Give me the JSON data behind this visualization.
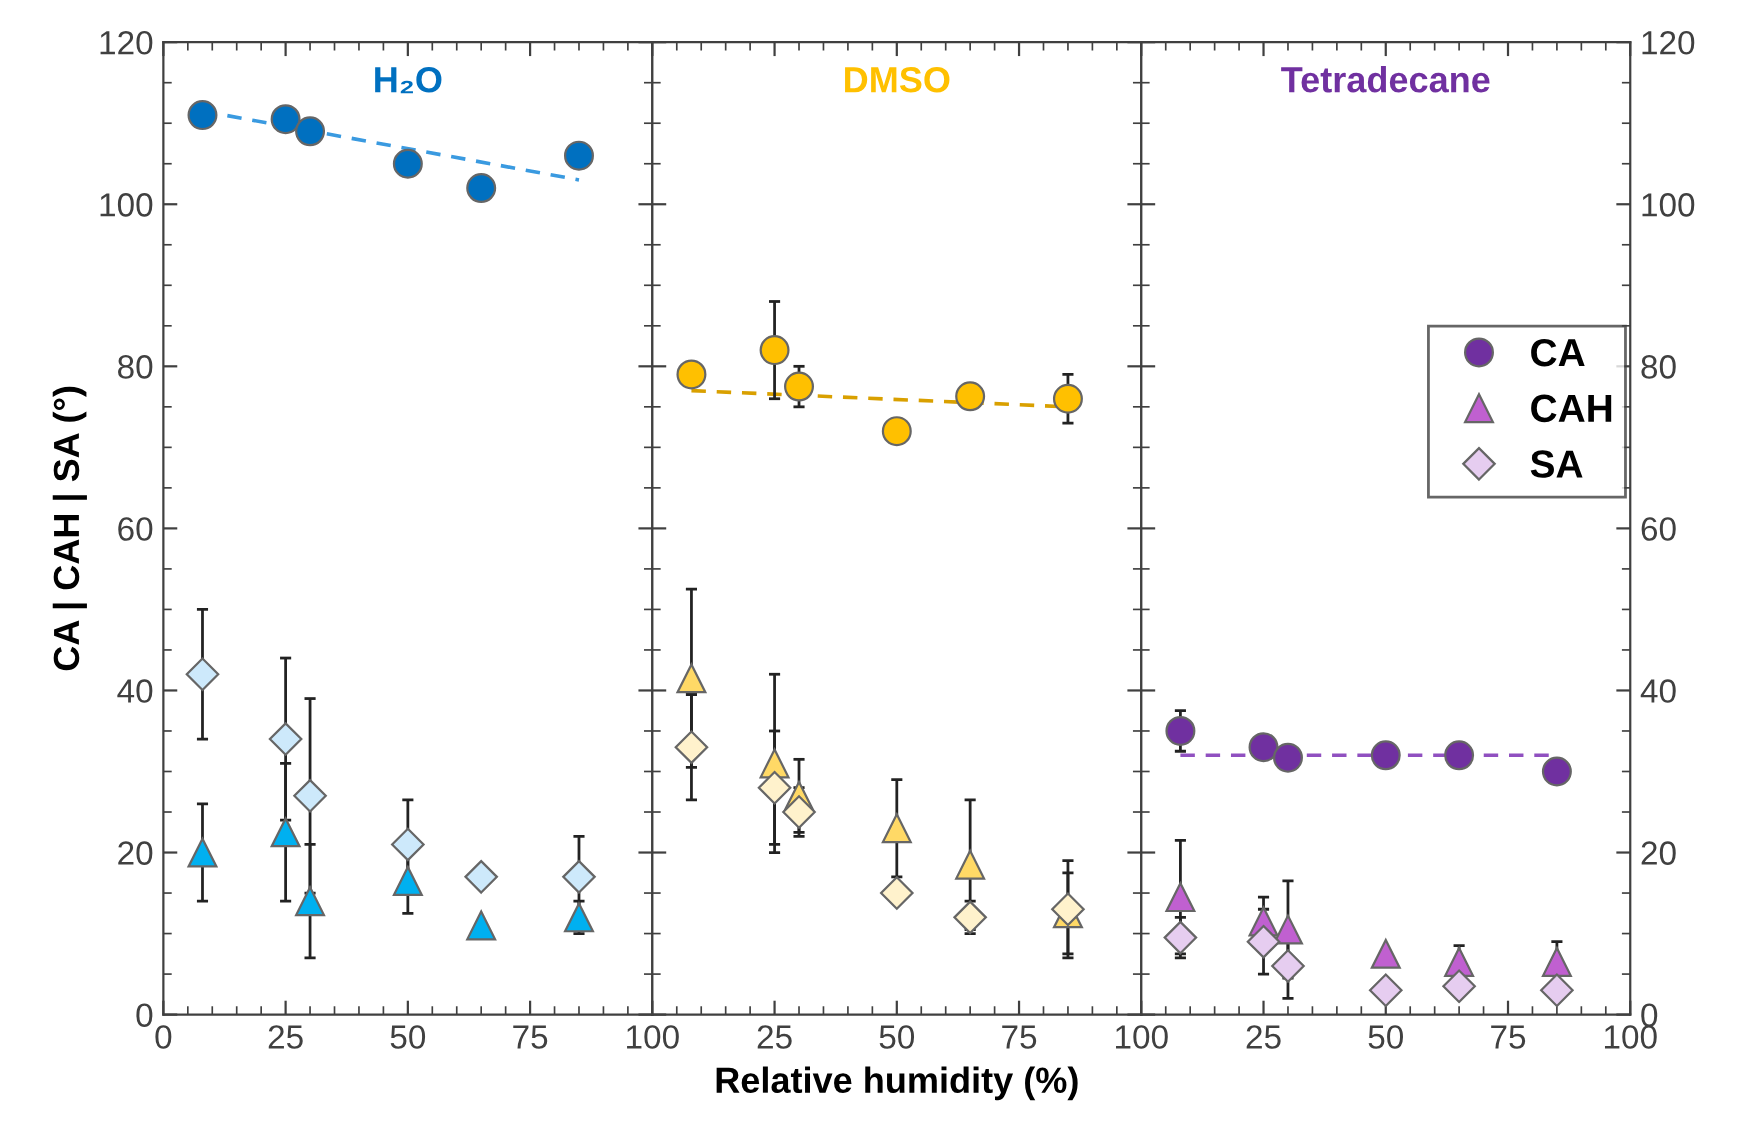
{
  "chart_data": [
    {
      "type": "scatter",
      "title": "H₂O",
      "ylabel": "CA | CAH | SA (°)",
      "xlim": [
        0,
        100
      ],
      "xticks": [
        0,
        25,
        50,
        75,
        100
      ],
      "ylim": [
        0,
        120
      ],
      "yticks": [
        0,
        20,
        40,
        60,
        80,
        100,
        120
      ],
      "grid": false,
      "legend": false,
      "series": [
        {
          "marker": "circle",
          "color": "#0070c0",
          "x": [
            8,
            25,
            30,
            50,
            65,
            85
          ],
          "values": [
            111,
            110.5,
            109,
            105,
            102,
            106
          ],
          "errors": [
            null,
            null,
            null,
            1.5,
            null,
            1.5
          ]
        },
        {
          "marker": "triangle",
          "color": "#00b0f0",
          "x": [
            8,
            25,
            30,
            50,
            65,
            85
          ],
          "values": [
            20,
            22.5,
            14,
            16.5,
            11,
            12
          ],
          "errors": [
            6,
            8.5,
            7,
            4,
            null,
            2
          ]
        },
        {
          "marker": "diamond",
          "color": "#cde9fb",
          "x": [
            8,
            25,
            30,
            50,
            65,
            85
          ],
          "values": [
            42,
            34,
            27,
            21,
            17,
            17
          ],
          "errors": [
            8,
            10,
            12,
            5.5,
            null,
            5
          ]
        },
        {
          "type": "line",
          "line_style": "dashed",
          "marker": "none",
          "color": "#3a9ae0",
          "x": [
            8,
            85
          ],
          "values": [
            111.5,
            103
          ]
        }
      ]
    },
    {
      "type": "scatter",
      "title": "DMSO",
      "xlabel": "Relative humidity (%)",
      "xlim": [
        0,
        100
      ],
      "xticks": [
        {
          "value": 0,
          "label": null
        },
        25,
        50,
        75,
        100
      ],
      "ylim": [
        0,
        120
      ],
      "yticks": [
        {
          "value": 0,
          "label": null
        },
        {
          "value": 20,
          "label": null
        },
        {
          "value": 40,
          "label": null
        },
        {
          "value": 60,
          "label": null
        },
        {
          "value": 80,
          "label": null
        },
        {
          "value": 100,
          "label": null
        },
        {
          "value": 120,
          "label": null
        }
      ],
      "tick_labels": "x",
      "grid": false,
      "legend": false,
      "series": [
        {
          "marker": "circle",
          "color": "#ffc000",
          "x": [
            8,
            25,
            30,
            50,
            65,
            85
          ],
          "values": [
            79,
            82,
            77.5,
            72,
            76.3,
            76
          ],
          "errors": [
            null,
            6,
            2.5,
            null,
            null,
            3
          ]
        },
        {
          "marker": "triangle",
          "color": "#ffd966",
          "x": [
            8,
            25,
            30,
            50,
            65,
            85
          ],
          "values": [
            41.5,
            31,
            27,
            23,
            18.5,
            12.5
          ],
          "errors": [
            11,
            11,
            4.5,
            6,
            8,
            5
          ]
        },
        {
          "marker": "diamond",
          "color": "#fff2cc",
          "x": [
            8,
            25,
            30,
            50,
            65,
            85
          ],
          "values": [
            33,
            28,
            25,
            15,
            12,
            13
          ],
          "errors": [
            6.5,
            7,
            3,
            null,
            2,
            6
          ]
        },
        {
          "type": "line",
          "line_style": "dashed",
          "marker": "none",
          "color": "#d9a000",
          "x": [
            8,
            85
          ],
          "values": [
            77,
            75
          ]
        }
      ]
    },
    {
      "type": "scatter",
      "title": "Tetradecane",
      "xlim": [
        0,
        100
      ],
      "xticks": [
        {
          "value": 0,
          "label": null
        },
        25,
        50,
        75,
        100
      ],
      "ylim": [
        0,
        120
      ],
      "yticks": [
        0,
        20,
        40,
        60,
        80,
        100,
        120
      ],
      "grid": false,
      "legend": "right",
      "series": [
        {
          "name": "CA",
          "marker": "circle",
          "color": "#7030a0",
          "x": [
            8,
            25,
            30,
            50,
            65,
            85
          ],
          "values": [
            35,
            33,
            31.7,
            32,
            32,
            30
          ],
          "errors": [
            2.5,
            null,
            null,
            null,
            null,
            1.5
          ]
        },
        {
          "name": "CAH",
          "marker": "triangle",
          "color": "#c060d0",
          "x": [
            8,
            25,
            30,
            50,
            65,
            85
          ],
          "values": [
            14.5,
            11.5,
            10.5,
            7.5,
            6.5,
            6.5
          ],
          "errors": [
            7,
            3,
            6,
            null,
            2,
            2.5
          ]
        },
        {
          "name": "SA",
          "marker": "diamond",
          "color": "#e6cdf0",
          "x": [
            8,
            25,
            30,
            50,
            65,
            85
          ],
          "values": [
            9.5,
            9,
            6,
            3,
            3.5,
            3
          ],
          "errors": [
            2.5,
            4,
            4,
            null,
            null,
            null
          ]
        },
        {
          "type": "line",
          "line_style": "dashed",
          "marker": "none",
          "color": "#9050c0",
          "x": [
            8,
            85
          ],
          "values": [
            32,
            32
          ]
        }
      ]
    }
  ]
}
